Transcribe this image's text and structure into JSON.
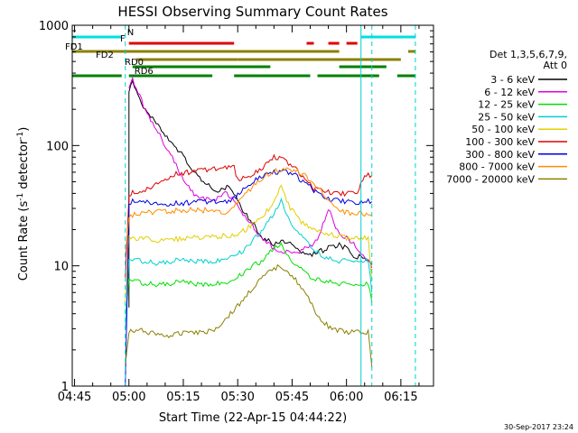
{
  "chart_data": {
    "type": "line",
    "title": "HESSI Observing Summary Count Rates",
    "xlabel": "Start Time (22-Apr-15 04:44:22)",
    "ylabel_main": "Count Rate (s",
    "ylabel_sup1": "-1",
    "ylabel_mid": " detector",
    "ylabel_sup2": "-1",
    "ylabel_end": ")",
    "y_scale": "log",
    "ylim": [
      1,
      1000
    ],
    "xlim": [
      "04:44:22",
      "06:24:00"
    ],
    "x_ticks": [
      "04:45",
      "05:00",
      "05:15",
      "05:30",
      "05:45",
      "06:00",
      "06:15"
    ],
    "y_ticks": [
      "1",
      "10",
      "100",
      "1000"
    ],
    "legend_header": [
      "Det 1,3,5,6,7,9,",
      "Att 0"
    ],
    "legend_placement": "right",
    "footer_date": "30-Sep-2017 23:24",
    "series": [
      {
        "name": "3 - 6 keV",
        "color": "#000000",
        "points": [
          [
            "04:44",
            "-"
          ],
          [
            "05:00",
            4.5
          ],
          [
            "05:00",
            290
          ],
          [
            "05:01",
            350
          ],
          [
            "05:03",
            240
          ],
          [
            "05:05",
            190
          ],
          [
            "05:08",
            150
          ],
          [
            "05:10",
            120
          ],
          [
            "05:14",
            90
          ],
          [
            "05:17",
            65
          ],
          [
            "05:21",
            48
          ],
          [
            "05:24",
            42
          ],
          [
            "05:27",
            45
          ],
          [
            "05:29",
            40
          ],
          [
            "05:31",
            30
          ],
          [
            "05:34",
            23
          ],
          [
            "05:37",
            17
          ],
          [
            "05:40",
            15
          ],
          [
            "05:43",
            16
          ],
          [
            "05:46",
            14
          ],
          [
            "05:49",
            12
          ],
          [
            "05:52",
            13
          ],
          [
            "05:55",
            14
          ],
          [
            "05:58",
            15
          ],
          [
            "06:00",
            14
          ],
          [
            "06:02",
            12
          ],
          [
            "06:05",
            12
          ],
          [
            "06:07",
            10
          ]
        ]
      },
      {
        "name": "6 - 12 keV",
        "color": "#e000e0",
        "points": [
          [
            "05:00",
            300
          ],
          [
            "05:01",
            360
          ],
          [
            "05:03",
            260
          ],
          [
            "05:05",
            180
          ],
          [
            "05:08",
            130
          ],
          [
            "05:11",
            90
          ],
          [
            "05:14",
            60
          ],
          [
            "05:17",
            42
          ],
          [
            "05:20",
            36
          ],
          [
            "05:24",
            36
          ],
          [
            "05:27",
            40
          ],
          [
            "05:29",
            36
          ],
          [
            "05:31",
            28
          ],
          [
            "05:34",
            22
          ],
          [
            "05:37",
            16
          ],
          [
            "05:40",
            14
          ],
          [
            "05:43",
            13
          ],
          [
            "05:46",
            13
          ],
          [
            "05:49",
            14
          ],
          [
            "05:52",
            16
          ],
          [
            "05:55",
            30
          ],
          [
            "05:58",
            18
          ],
          [
            "06:00",
            17
          ],
          [
            "06:03",
            14
          ],
          [
            "06:05",
            12
          ],
          [
            "06:07",
            10
          ]
        ]
      },
      {
        "name": "12 - 25 keV",
        "color": "#00e000",
        "points": [
          [
            "04:59",
            4.0
          ],
          [
            "05:00",
            7.5
          ],
          [
            "05:04",
            7.2
          ],
          [
            "05:08",
            7.0
          ],
          [
            "05:12",
            7.2
          ],
          [
            "05:16",
            7.3
          ],
          [
            "05:20",
            7.0
          ],
          [
            "05:24",
            7.2
          ],
          [
            "05:28",
            7.4
          ],
          [
            "05:31",
            8.5
          ],
          [
            "05:34",
            10
          ],
          [
            "05:37",
            11
          ],
          [
            "05:40",
            14
          ],
          [
            "05:42",
            15
          ],
          [
            "05:44",
            12
          ],
          [
            "05:47",
            9.5
          ],
          [
            "05:50",
            8.2
          ],
          [
            "05:53",
            7.5
          ],
          [
            "05:57",
            7.2
          ],
          [
            "06:00",
            7.0
          ],
          [
            "06:03",
            7.0
          ],
          [
            "06:06",
            7.0
          ],
          [
            "06:07",
            5
          ]
        ]
      },
      {
        "name": "25 - 50 keV",
        "color": "#00d0d0",
        "points": [
          [
            "04:59",
            3
          ],
          [
            "05:00",
            11
          ],
          [
            "05:04",
            11
          ],
          [
            "05:08",
            10.5
          ],
          [
            "05:12",
            11
          ],
          [
            "05:16",
            11
          ],
          [
            "05:20",
            11
          ],
          [
            "05:24",
            11
          ],
          [
            "05:28",
            12
          ],
          [
            "05:31",
            13
          ],
          [
            "05:34",
            16
          ],
          [
            "05:37",
            20
          ],
          [
            "05:40",
            27
          ],
          [
            "05:42",
            35
          ],
          [
            "05:44",
            25
          ],
          [
            "05:47",
            18
          ],
          [
            "05:50",
            15
          ],
          [
            "05:53",
            12
          ],
          [
            "05:57",
            11
          ],
          [
            "06:00",
            11
          ],
          [
            "06:03",
            11
          ],
          [
            "06:06",
            11
          ],
          [
            "06:07",
            6
          ]
        ]
      },
      {
        "name": "50 - 100 keV",
        "color": "#e0d000",
        "points": [
          [
            "04:59",
            5
          ],
          [
            "05:00",
            17
          ],
          [
            "05:04",
            17
          ],
          [
            "05:08",
            16
          ],
          [
            "05:12",
            16.5
          ],
          [
            "05:16",
            17
          ],
          [
            "05:20",
            17
          ],
          [
            "05:24",
            17.5
          ],
          [
            "05:28",
            18
          ],
          [
            "05:31",
            19
          ],
          [
            "05:34",
            22
          ],
          [
            "05:37",
            26
          ],
          [
            "05:40",
            34
          ],
          [
            "05:42",
            48
          ],
          [
            "05:44",
            32
          ],
          [
            "05:47",
            24
          ],
          [
            "05:50",
            21
          ],
          [
            "05:53",
            19
          ],
          [
            "05:57",
            18
          ],
          [
            "06:00",
            17
          ],
          [
            "06:03",
            17
          ],
          [
            "06:06",
            17
          ],
          [
            "06:07",
            8
          ]
        ]
      },
      {
        "name": "100 - 300 keV",
        "color": "#e00000",
        "points": [
          [
            "04:59",
            8
          ],
          [
            "05:00",
            40
          ],
          [
            "05:04",
            42
          ],
          [
            "05:08",
            50
          ],
          [
            "05:12",
            57
          ],
          [
            "05:16",
            60
          ],
          [
            "05:20",
            62
          ],
          [
            "05:24",
            64
          ],
          [
            "05:28",
            66
          ],
          [
            "05:29",
            66
          ],
          [
            "05:30",
            52
          ],
          [
            "05:33",
            56
          ],
          [
            "05:36",
            62
          ],
          [
            "05:38",
            70
          ],
          [
            "05:40",
            80
          ],
          [
            "05:42",
            78
          ],
          [
            "05:44",
            70
          ],
          [
            "05:47",
            60
          ],
          [
            "05:49",
            50
          ],
          [
            "05:51",
            44
          ],
          [
            "05:54",
            42
          ],
          [
            "05:57",
            40
          ],
          [
            "06:00",
            40
          ],
          [
            "06:03",
            42
          ],
          [
            "06:05",
            56
          ],
          [
            "06:07",
            56
          ]
        ]
      },
      {
        "name": "300 - 800 keV",
        "color": "#0000e0",
        "points": [
          [
            "04:59",
            1
          ],
          [
            "05:00",
            34
          ],
          [
            "05:03",
            35
          ],
          [
            "05:06",
            34
          ],
          [
            "05:10",
            33
          ],
          [
            "05:14",
            33
          ],
          [
            "05:18",
            34
          ],
          [
            "05:22",
            34
          ],
          [
            "05:26",
            34
          ],
          [
            "05:28",
            34
          ],
          [
            "05:31",
            42
          ],
          [
            "05:34",
            50
          ],
          [
            "05:37",
            56
          ],
          [
            "05:40",
            60
          ],
          [
            "05:43",
            60
          ],
          [
            "05:46",
            56
          ],
          [
            "05:49",
            48
          ],
          [
            "05:52",
            40
          ],
          [
            "05:55",
            36
          ],
          [
            "05:58",
            35
          ],
          [
            "06:01",
            34
          ],
          [
            "06:04",
            34
          ],
          [
            "06:07",
            34
          ]
        ]
      },
      {
        "name": "800 - 7000 keV",
        "color": "#ff8c00",
        "points": [
          [
            "04:59",
            12
          ],
          [
            "05:00",
            26
          ],
          [
            "05:03",
            27
          ],
          [
            "05:06",
            28
          ],
          [
            "05:10",
            28
          ],
          [
            "05:14",
            29
          ],
          [
            "05:18",
            29
          ],
          [
            "05:22",
            29
          ],
          [
            "05:26",
            28
          ],
          [
            "05:28",
            28
          ],
          [
            "05:31",
            36
          ],
          [
            "05:34",
            45
          ],
          [
            "05:37",
            55
          ],
          [
            "05:40",
            62
          ],
          [
            "05:43",
            64
          ],
          [
            "05:46",
            62
          ],
          [
            "05:49",
            55
          ],
          [
            "05:52",
            45
          ],
          [
            "05:55",
            35
          ],
          [
            "05:58",
            29
          ],
          [
            "06:01",
            27
          ],
          [
            "06:04",
            27
          ],
          [
            "06:07",
            27
          ]
        ]
      },
      {
        "name": "7000 - 20000 keV",
        "color": "#8b8000",
        "points": [
          [
            "04:59",
            1.5
          ],
          [
            "05:00",
            2.8
          ],
          [
            "05:04",
            2.9
          ],
          [
            "05:08",
            2.7
          ],
          [
            "05:12",
            2.6
          ],
          [
            "05:16",
            2.9
          ],
          [
            "05:20",
            2.8
          ],
          [
            "05:24",
            3.0
          ],
          [
            "05:28",
            4
          ],
          [
            "05:31",
            5
          ],
          [
            "05:34",
            6.5
          ],
          [
            "05:37",
            8
          ],
          [
            "05:40",
            9.5
          ],
          [
            "05:42",
            10
          ],
          [
            "05:44",
            9
          ],
          [
            "05:47",
            7
          ],
          [
            "05:50",
            5
          ],
          [
            "05:53",
            3.5
          ],
          [
            "05:56",
            3
          ],
          [
            "06:00",
            2.8
          ],
          [
            "06:03",
            2.8
          ],
          [
            "06:06",
            2.8
          ],
          [
            "06:07",
            1.5
          ]
        ]
      }
    ],
    "flag_bars": [
      {
        "label": "N",
        "label_color": "#00d0d0",
        "color": "#00e0e0",
        "row": 0,
        "segments": [
          [
            "04:44",
            "04:58"
          ],
          [
            "06:04",
            "06:19"
          ]
        ]
      },
      {
        "label": "F",
        "label_color": "#e00000",
        "color": "#e00000",
        "row": 1,
        "segments": [
          [
            "05:00",
            "05:29"
          ],
          [
            "05:49",
            "05:51"
          ],
          [
            "05:55",
            "05:58"
          ],
          [
            "06:00",
            "06:03"
          ]
        ]
      },
      {
        "label": "FD1",
        "label_color": "#8b8000",
        "color": "#8b8000",
        "row": 2,
        "segments": [
          [
            "04:44",
            "05:58"
          ],
          [
            "06:17",
            "06:19"
          ]
        ]
      },
      {
        "label": "FD2",
        "label_color": "#8b8000",
        "color": "#8b8000",
        "row": 3,
        "segments": [
          [
            "05:02",
            "05:30"
          ],
          [
            "05:30",
            "06:15"
          ]
        ]
      },
      {
        "label": "RD0",
        "label_color": "#008000",
        "color": "#008000",
        "row": 4,
        "segments": [
          [
            "05:01",
            "05:39"
          ],
          [
            "05:58",
            "06:11"
          ]
        ]
      },
      {
        "label": "RD6",
        "label_color": "#008000",
        "color": "#008000",
        "row": 5,
        "segments": [
          [
            "04:44",
            "04:58"
          ],
          [
            "05:00",
            "05:23"
          ],
          [
            "05:29",
            "05:50"
          ],
          [
            "05:52",
            "06:09"
          ],
          [
            "06:14",
            "06:19"
          ]
        ]
      }
    ],
    "vertical_markers": [
      {
        "time": "04:59",
        "color": "#00d0d0",
        "style": "dashed"
      },
      {
        "time": "06:04",
        "color": "#00d0d0",
        "style": "solid"
      },
      {
        "time": "06:07",
        "color": "#00d0d0",
        "style": "dashed"
      },
      {
        "time": "06:19",
        "color": "#00d0d0",
        "style": "dashed"
      }
    ]
  }
}
